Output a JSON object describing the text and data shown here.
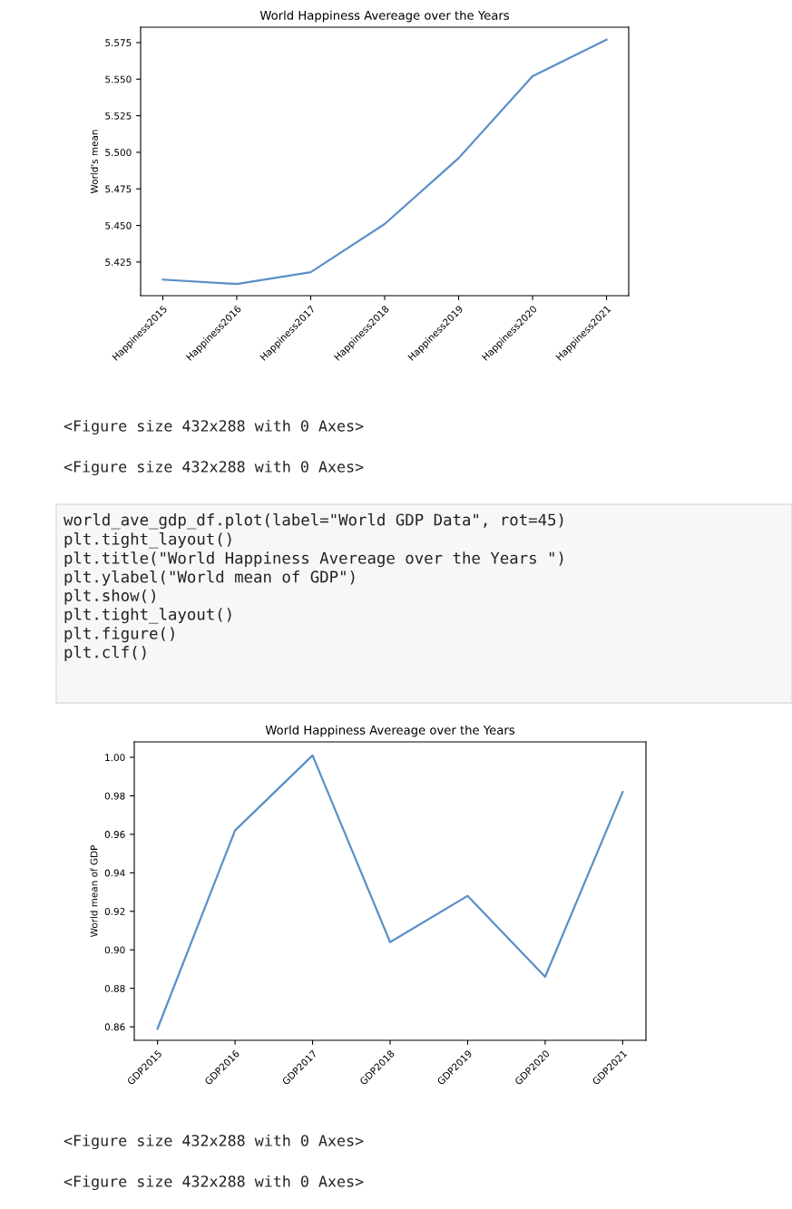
{
  "chart_data": [
    {
      "type": "line",
      "title": "World Happiness Avereage over the Years",
      "ylabel": "World's mean",
      "categories": [
        "Happiness2015",
        "Happiness2016",
        "Happiness2017",
        "Happiness2018",
        "Happiness2019",
        "Happiness2020",
        "Happiness2021"
      ],
      "series": [
        {
          "color": "#5a8fc8",
          "values": [
            5.413,
            5.41,
            5.418,
            5.451,
            5.496,
            5.552,
            5.577
          ]
        }
      ],
      "ylim": [
        5.402,
        5.5855
      ],
      "yticks": [
        {
          "value": 5.425,
          "label": "5.425"
        },
        {
          "value": 5.45,
          "label": "5.450"
        },
        {
          "value": 5.475,
          "label": "5.475"
        },
        {
          "value": 5.5,
          "label": "5.500"
        },
        {
          "value": 5.525,
          "label": "5.525"
        },
        {
          "value": 5.55,
          "label": "5.550"
        },
        {
          "value": 5.575,
          "label": "5.575"
        }
      ],
      "grid": false,
      "legend": false,
      "annotations": [
        "<Figure size 432x288 with 0 Axes>",
        "<Figure size 432x288 with 0 Axes>"
      ]
    },
    {
      "type": "line",
      "title": "World Happiness Avereage over the Years",
      "ylabel": "World mean of GDP",
      "categories": [
        "GDP2015",
        "GDP2016",
        "GDP2017",
        "GDP2018",
        "GDP2019",
        "GDP2020",
        "GDP2021"
      ],
      "series": [
        {
          "color": "#5a8fc8",
          "values": [
            0.859,
            0.962,
            1.001,
            0.904,
            0.928,
            0.886,
            0.982
          ]
        }
      ],
      "ylim": [
        0.853,
        1.008
      ],
      "yticks": [
        {
          "value": 0.86,
          "label": "0.86"
        },
        {
          "value": 0.88,
          "label": "0.88"
        },
        {
          "value": 0.9,
          "label": "0.90"
        },
        {
          "value": 0.92,
          "label": "0.92"
        },
        {
          "value": 0.94,
          "label": "0.94"
        },
        {
          "value": 0.96,
          "label": "0.96"
        },
        {
          "value": 0.98,
          "label": "0.98"
        },
        {
          "value": 1.0,
          "label": "1.00"
        }
      ],
      "grid": false,
      "legend": false,
      "annotations": [
        "world_ave_gdp_df.plot(label=\"World GDP Data\", rot=45)\nplt.tight_layout()\nplt.title(\"World Happiness Avereage over the Years \")\nplt.ylabel(\"World mean of GDP\")\nplt.show()\nplt.tight_layout()\nplt.figure()\nplt.clf()",
        "<Figure size 432x288 with 0 Axes>",
        "<Figure size 432x288 with 0 Axes>"
      ]
    }
  ]
}
